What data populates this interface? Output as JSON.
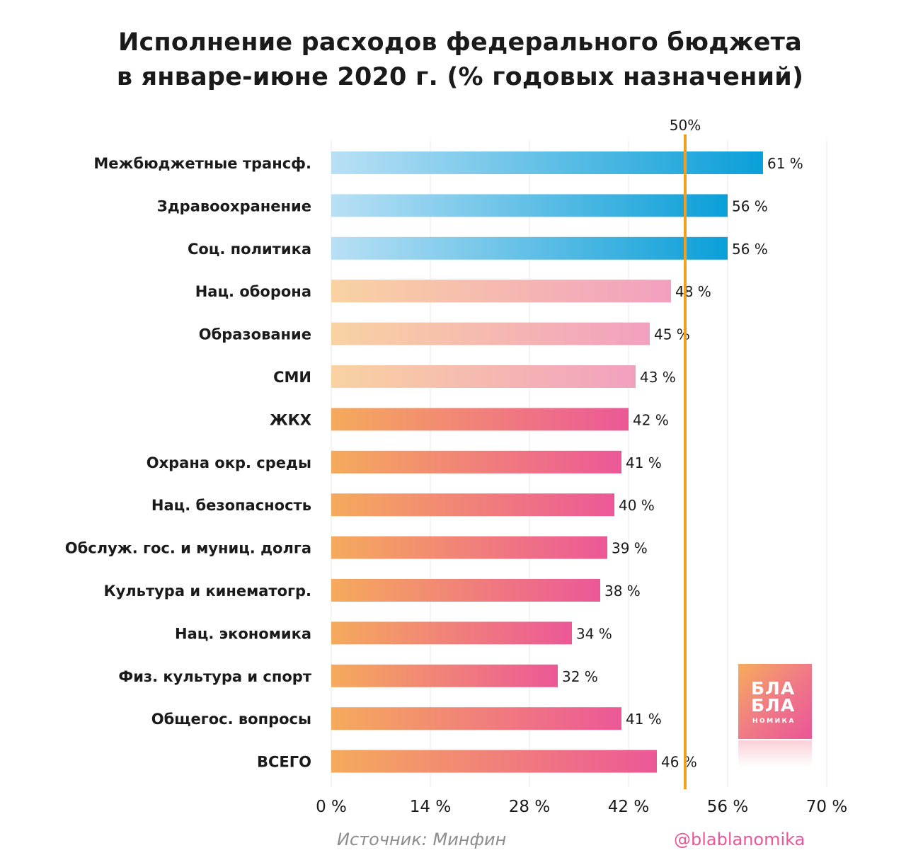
{
  "title": {
    "line1": "Исполнение расходов федерального бюджета",
    "line2": "в январе-июне 2020 г. (% годовых назначений)"
  },
  "chart_data": {
    "type": "bar",
    "orientation": "horizontal",
    "categories": [
      "Межбюджетные трансф.",
      "Здравоохранение",
      "Соц. политика",
      "Нац. оборона",
      "Образование",
      "СМИ",
      "ЖКХ",
      "Охрана окр. среды",
      "Нац. безопасность",
      "Обслуж. гос. и муниц. долга",
      "Культура и кинематогр.",
      "Нац. экономика",
      "Физ. культура и спорт",
      "Общегос. вопросы",
      "ВСЕГО"
    ],
    "values": [
      61,
      56,
      56,
      48,
      45,
      43,
      42,
      41,
      40,
      39,
      38,
      34,
      32,
      41,
      46
    ],
    "value_labels": [
      "61 %",
      "56 %",
      "56 %",
      "48 %",
      "45 %",
      "43 %",
      "42 %",
      "41 %",
      "40 %",
      "39 %",
      "38 %",
      "34 %",
      "32 %",
      "41 %",
      "46 %"
    ],
    "bar_groups": [
      "blue",
      "blue",
      "blue",
      "pastel",
      "pastel",
      "pastel",
      "warm",
      "warm",
      "warm",
      "warm",
      "warm",
      "warm",
      "warm",
      "warm",
      "warm"
    ],
    "xlim": [
      0,
      70
    ],
    "xticks": [
      0,
      14,
      28,
      42,
      56,
      70
    ],
    "xtick_labels": [
      "0 %",
      "14 %",
      "28 %",
      "42 %",
      "56 %",
      "70 %"
    ],
    "reference_line": {
      "value": 50,
      "label": "50%",
      "color": "#f0a020"
    },
    "gradients": {
      "blue": [
        "#b9e0f5",
        "#0a9fd8"
      ],
      "pastel": [
        "#f9d2a2",
        "#f2a0bf"
      ],
      "warm": [
        "#f5aa5c",
        "#ec5897"
      ]
    },
    "grid": true
  },
  "source": "Источник: Минфин",
  "handle": "@blablanomika",
  "logo": {
    "line1": "БЛА",
    "line2": "БЛА",
    "line3": "НОМИКА"
  }
}
